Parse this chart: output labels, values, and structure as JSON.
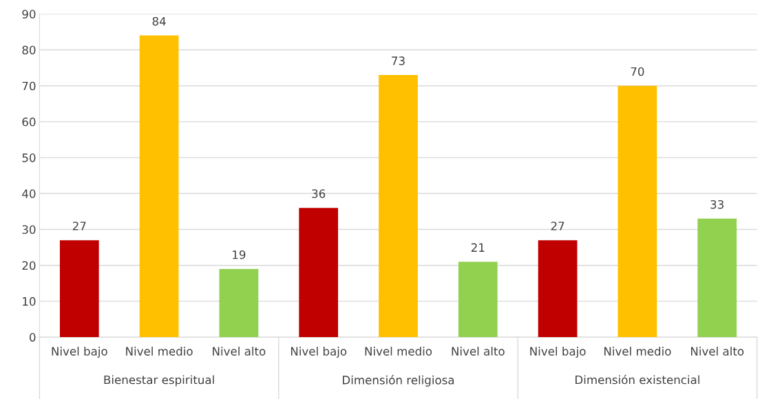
{
  "chart_data": {
    "type": "bar",
    "categories": [
      "Nivel bajo",
      "Nivel medio",
      "Nivel alto",
      "Nivel bajo",
      "Nivel medio",
      "Nivel alto",
      "Nivel bajo",
      "Nivel medio",
      "Nivel alto"
    ],
    "values": [
      27,
      84,
      19,
      36,
      73,
      21,
      27,
      70,
      33
    ],
    "colors": [
      "#c00000",
      "#ffc000",
      "#92d050",
      "#c00000",
      "#ffc000",
      "#92d050",
      "#c00000",
      "#ffc000",
      "#92d050"
    ],
    "ylim": [
      0,
      90
    ],
    "yticks": [
      0,
      10,
      20,
      30,
      40,
      50,
      60,
      70,
      80,
      90
    ],
    "grid": "y",
    "data_labels": true,
    "annotations": [
      "Bienestar espiritual",
      "Dimensión religiosa",
      "Dimensión existencial"
    ]
  }
}
